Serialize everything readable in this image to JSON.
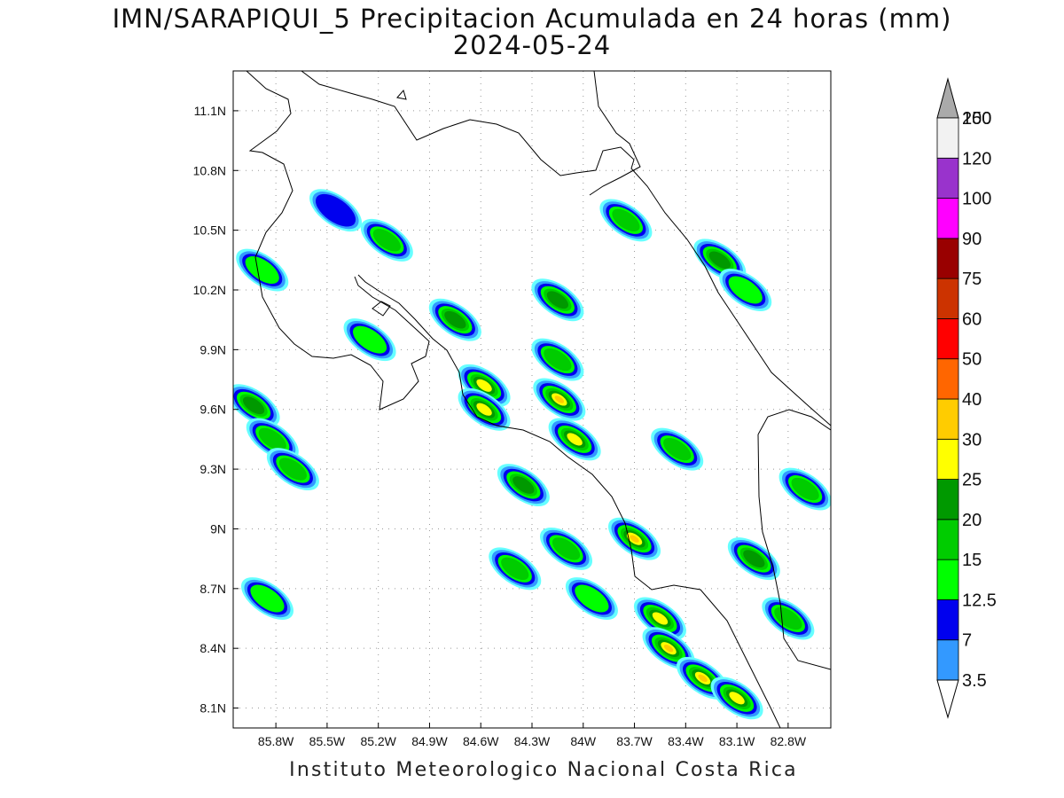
{
  "title": "IMN/SARAPIQUI_5 Precipitacion Acumulada en 24 horas (mm)",
  "subtitle": "2024-05-24",
  "footer": "Instituto Meteorologico Nacional Costa Rica",
  "map": {
    "lon_range": [
      -86.05,
      -82.55
    ],
    "lat_range": [
      8.0,
      11.3
    ],
    "lon_ticks": [
      {
        "value": -85.8,
        "label": "85.8W"
      },
      {
        "value": -85.5,
        "label": "85.5W"
      },
      {
        "value": -85.2,
        "label": "85.2W"
      },
      {
        "value": -84.9,
        "label": "84.9W"
      },
      {
        "value": -84.6,
        "label": "84.6W"
      },
      {
        "value": -84.3,
        "label": "84.3W"
      },
      {
        "value": -84.0,
        "label": "84W"
      },
      {
        "value": -83.7,
        "label": "83.7W"
      },
      {
        "value": -83.4,
        "label": "83.4W"
      },
      {
        "value": -83.1,
        "label": "83.1W"
      },
      {
        "value": -82.8,
        "label": "82.8W"
      }
    ],
    "lat_ticks": [
      {
        "value": 11.1,
        "label": "11.1N"
      },
      {
        "value": 10.8,
        "label": "10.8N"
      },
      {
        "value": 10.5,
        "label": "10.5N"
      },
      {
        "value": 10.2,
        "label": "10.2N"
      },
      {
        "value": 9.9,
        "label": "9.9N"
      },
      {
        "value": 9.6,
        "label": "9.6N"
      },
      {
        "value": 9.3,
        "label": "9.3N"
      },
      {
        "value": 9.0,
        "label": "9N"
      },
      {
        "value": 8.7,
        "label": "8.7N"
      },
      {
        "value": 8.4,
        "label": "8.4N"
      },
      {
        "value": 8.1,
        "label": "8.1N"
      }
    ],
    "grid": "dotted"
  },
  "legend": {
    "bins": [
      {
        "label": "3.5",
        "color": "#66ffff"
      },
      {
        "label": "7",
        "color": "#3399ff"
      },
      {
        "label": "12.5",
        "color": "#0000ee"
      },
      {
        "label": "15",
        "color": "#00ff00"
      },
      {
        "label": "20",
        "color": "#00cc00"
      },
      {
        "label": "25",
        "color": "#009900"
      },
      {
        "label": "30",
        "color": "#ffff00"
      },
      {
        "label": "40",
        "color": "#ffcc00"
      },
      {
        "label": "50",
        "color": "#ff6600"
      },
      {
        "label": "60",
        "color": "#ff0000"
      },
      {
        "label": "75",
        "color": "#cc3300"
      },
      {
        "label": "90",
        "color": "#990000"
      },
      {
        "label": "100",
        "color": "#ff00ff"
      },
      {
        "label": "120",
        "color": "#9933cc"
      },
      {
        "label": "150",
        "color": "#f2f2f2"
      },
      {
        "label": "200",
        "color": "#aaaaaa"
      }
    ]
  },
  "precip_cells": [
    {
      "lon": -85.93,
      "lat": 9.62,
      "intensity": 5
    },
    {
      "lon": -85.82,
      "lat": 9.45,
      "intensity": 4
    },
    {
      "lon": -85.7,
      "lat": 9.3,
      "intensity": 4
    },
    {
      "lon": -85.88,
      "lat": 10.3,
      "intensity": 3
    },
    {
      "lon": -85.45,
      "lat": 10.6,
      "intensity": 2
    },
    {
      "lon": -85.15,
      "lat": 10.45,
      "intensity": 4
    },
    {
      "lon": -85.25,
      "lat": 9.95,
      "intensity": 3
    },
    {
      "lon": -84.75,
      "lat": 10.05,
      "intensity": 5
    },
    {
      "lon": -84.58,
      "lat": 9.72,
      "intensity": 6
    },
    {
      "lon": -84.58,
      "lat": 9.6,
      "intensity": 6
    },
    {
      "lon": -84.14,
      "lat": 9.65,
      "intensity": 7
    },
    {
      "lon": -84.05,
      "lat": 9.45,
      "intensity": 6
    },
    {
      "lon": -84.35,
      "lat": 9.22,
      "intensity": 5
    },
    {
      "lon": -84.15,
      "lat": 10.15,
      "intensity": 5
    },
    {
      "lon": -84.15,
      "lat": 9.85,
      "intensity": 4
    },
    {
      "lon": -83.75,
      "lat": 10.55,
      "intensity": 4
    },
    {
      "lon": -83.2,
      "lat": 10.35,
      "intensity": 5
    },
    {
      "lon": -83.05,
      "lat": 10.2,
      "intensity": 3
    },
    {
      "lon": -83.7,
      "lat": 8.95,
      "intensity": 7
    },
    {
      "lon": -83.55,
      "lat": 8.55,
      "intensity": 6
    },
    {
      "lon": -83.5,
      "lat": 8.4,
      "intensity": 7
    },
    {
      "lon": -83.3,
      "lat": 8.25,
      "intensity": 7
    },
    {
      "lon": -83.1,
      "lat": 8.15,
      "intensity": 6
    },
    {
      "lon": -83.45,
      "lat": 9.4,
      "intensity": 4
    },
    {
      "lon": -83.0,
      "lat": 8.85,
      "intensity": 5
    },
    {
      "lon": -82.8,
      "lat": 8.55,
      "intensity": 4
    },
    {
      "lon": -82.7,
      "lat": 9.2,
      "intensity": 4
    },
    {
      "lon": -84.1,
      "lat": 8.9,
      "intensity": 4
    },
    {
      "lon": -84.4,
      "lat": 8.8,
      "intensity": 4
    },
    {
      "lon": -83.95,
      "lat": 8.65,
      "intensity": 3
    },
    {
      "lon": -85.85,
      "lat": 8.65,
      "intensity": 3
    }
  ]
}
